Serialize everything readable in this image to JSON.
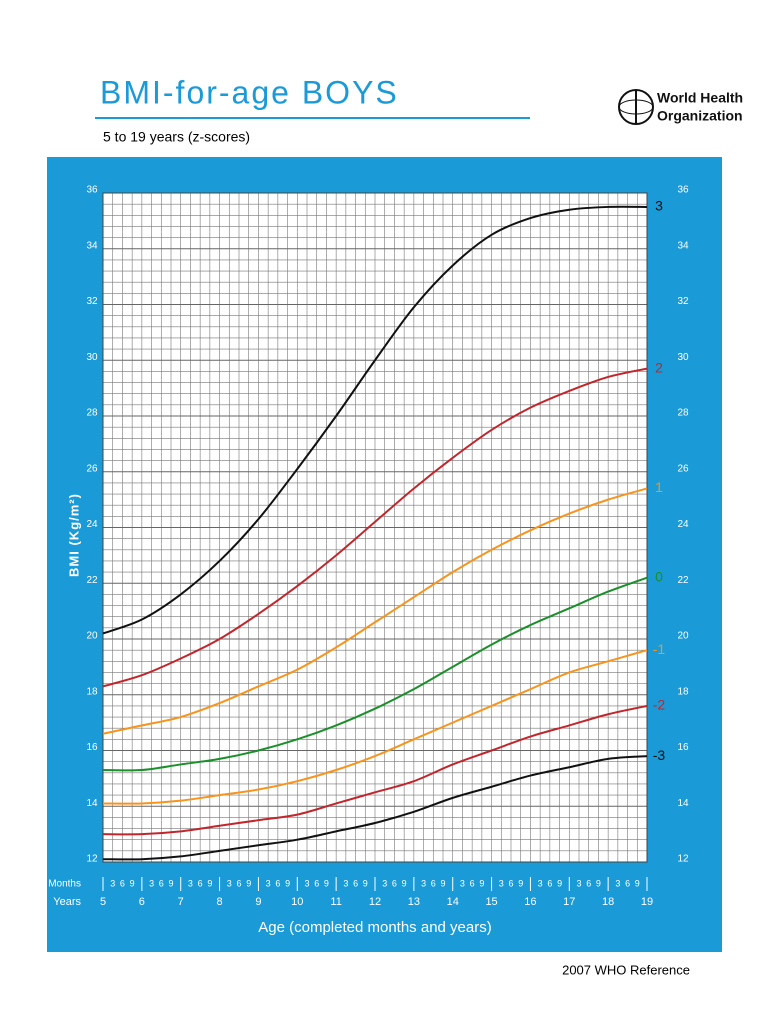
{
  "chart_data": {
    "type": "line",
    "title": "BMI-for-age  BOYS",
    "subtitle": "5 to 19 years (z-scores)",
    "y_label": "BMI (Kg/m²)",
    "x_label": "Age (completed months and years)",
    "months_label": "Months",
    "years_label": "Years",
    "month_ticks": [
      3,
      6,
      9
    ],
    "x": [
      5,
      6,
      7,
      8,
      9,
      10,
      11,
      12,
      13,
      14,
      15,
      16,
      17,
      18,
      19
    ],
    "xlim": [
      5,
      19
    ],
    "xticks": [
      5,
      6,
      7,
      8,
      9,
      10,
      11,
      12,
      13,
      14,
      15,
      16,
      17,
      18,
      19
    ],
    "ylim": [
      12,
      36
    ],
    "yticks": [
      12,
      14,
      16,
      18,
      20,
      22,
      24,
      26,
      28,
      30,
      32,
      34,
      36
    ],
    "grid": true,
    "series": [
      {
        "name": "3",
        "color": "#111111",
        "values": [
          20.2,
          20.7,
          21.6,
          22.8,
          24.3,
          26.1,
          28.0,
          30.0,
          31.9,
          33.4,
          34.5,
          35.1,
          35.4,
          35.5,
          35.5
        ]
      },
      {
        "name": "2",
        "color": "#c0272d",
        "values": [
          18.3,
          18.7,
          19.3,
          20.0,
          20.9,
          21.9,
          23.0,
          24.2,
          25.4,
          26.5,
          27.5,
          28.3,
          28.9,
          29.4,
          29.7
        ]
      },
      {
        "name": "1",
        "color": "#f7941d",
        "values": [
          16.6,
          16.9,
          17.2,
          17.7,
          18.3,
          18.9,
          19.7,
          20.6,
          21.5,
          22.4,
          23.2,
          23.9,
          24.5,
          25.0,
          25.4
        ]
      },
      {
        "name": "0",
        "color": "#1a8f2a",
        "values": [
          15.3,
          15.3,
          15.5,
          15.7,
          16.0,
          16.4,
          16.9,
          17.5,
          18.2,
          19.0,
          19.8,
          20.5,
          21.1,
          21.7,
          22.2
        ]
      },
      {
        "name": "-1",
        "color": "#f7941d",
        "values": [
          14.1,
          14.1,
          14.2,
          14.4,
          14.6,
          14.9,
          15.3,
          15.8,
          16.4,
          17.0,
          17.6,
          18.2,
          18.8,
          19.2,
          19.6
        ]
      },
      {
        "name": "-2",
        "color": "#c0272d",
        "values": [
          13.0,
          13.0,
          13.1,
          13.3,
          13.5,
          13.7,
          14.1,
          14.5,
          14.9,
          15.5,
          16.0,
          16.5,
          16.9,
          17.3,
          17.6
        ]
      },
      {
        "name": "-3",
        "color": "#111111",
        "values": [
          12.1,
          12.1,
          12.2,
          12.4,
          12.6,
          12.8,
          13.1,
          13.4,
          13.8,
          14.3,
          14.7,
          15.1,
          15.4,
          15.7,
          15.8
        ]
      }
    ]
  },
  "organization": [
    "World Health",
    "Organization"
  ],
  "footer": "2007  WHO Reference"
}
